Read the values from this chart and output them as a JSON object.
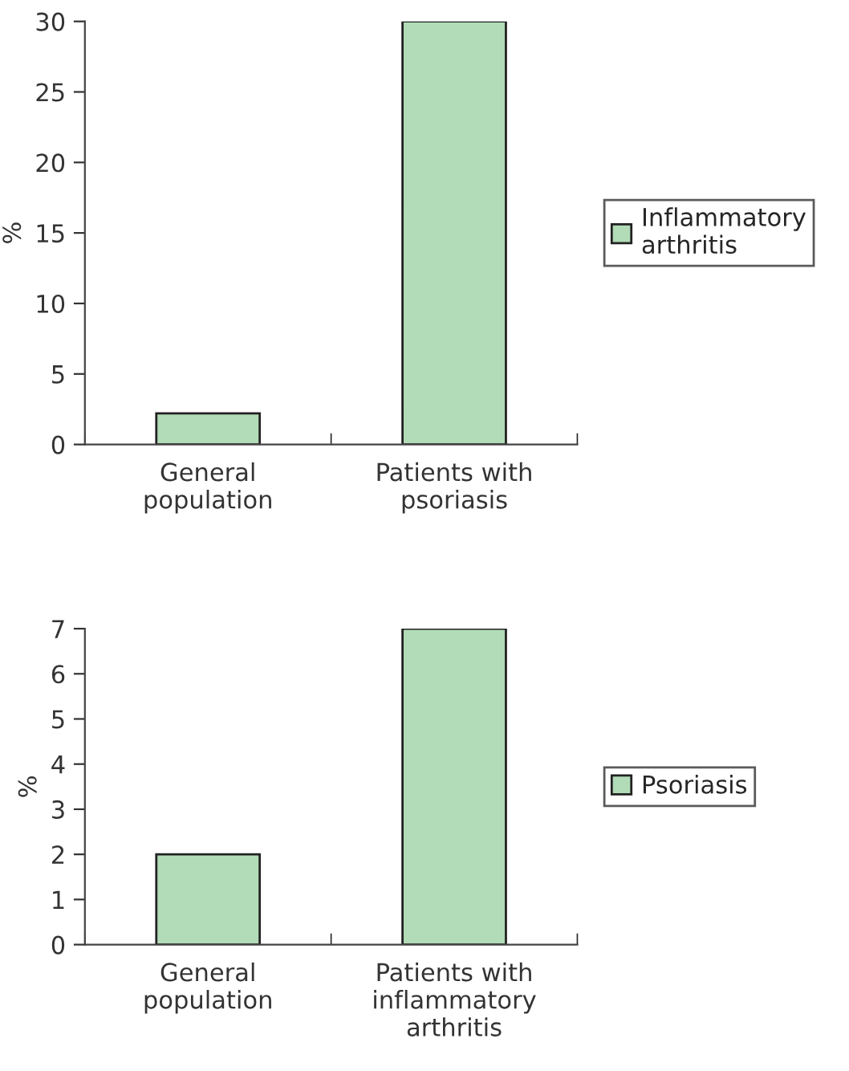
{
  "chart_data": [
    {
      "type": "bar",
      "ylabel": "%",
      "categories": [
        "General\npopulation",
        "Patients with\npsoriasis"
      ],
      "series": [
        {
          "name": "Inflammatory\narthritis",
          "color": "#b2dbb7",
          "values": [
            2.2,
            30
          ]
        }
      ],
      "ylim": [
        0,
        30
      ],
      "yticks": [
        0,
        5,
        10,
        15,
        20,
        25,
        30
      ],
      "legend": "right",
      "grid": false
    },
    {
      "type": "bar",
      "ylabel": "%",
      "categories": [
        "General\npopulation",
        "Patients with\ninflammatory\narthritis"
      ],
      "series": [
        {
          "name": "Psoriasis",
          "color": "#b2dbb7",
          "values": [
            2,
            7
          ]
        }
      ],
      "ylim": [
        0,
        7
      ],
      "yticks": [
        0,
        1,
        2,
        3,
        4,
        5,
        6,
        7
      ],
      "legend": "right",
      "grid": false
    }
  ]
}
